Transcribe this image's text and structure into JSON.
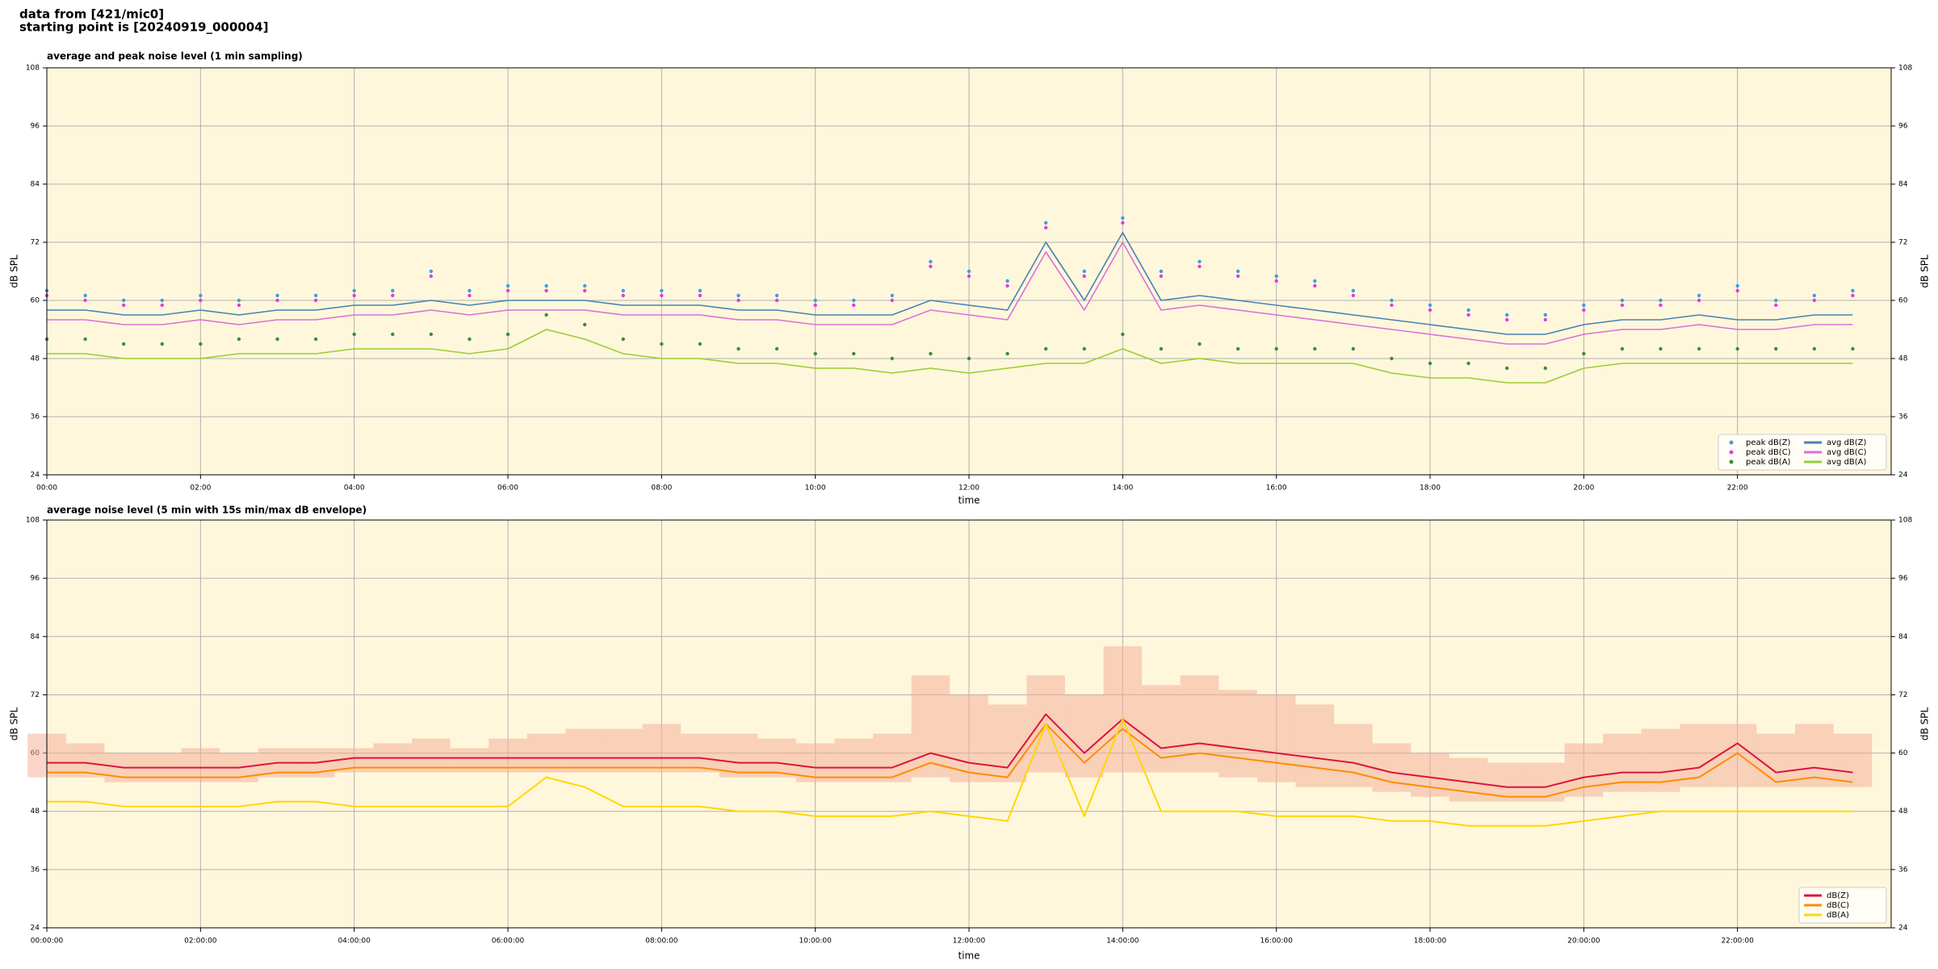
{
  "header": {
    "source": "data from [421/mic0]",
    "start": "starting point is [20240919_000004]"
  },
  "chart_data": [
    {
      "type": "line",
      "title": "average and peak noise level (1 min sampling)",
      "xlabel": "time",
      "ylabel": "dB SPL",
      "x": [
        0,
        0.5,
        1,
        1.5,
        2,
        2.5,
        3,
        3.5,
        4,
        4.5,
        5,
        5.5,
        6,
        6.5,
        7,
        7.5,
        8,
        8.5,
        9,
        9.5,
        10,
        10.5,
        11,
        11.5,
        12,
        12.5,
        13,
        13.5,
        14,
        14.5,
        15,
        15.5,
        16,
        16.5,
        17,
        17.5,
        18,
        18.5,
        19,
        19.5,
        20,
        20.5,
        21,
        21.5,
        22,
        22.5,
        23,
        23.5
      ],
      "xlim": [
        0,
        24
      ],
      "xticks": [
        {
          "value": 0,
          "label": "00:00"
        },
        {
          "value": 2,
          "label": "02:00"
        },
        {
          "value": 4,
          "label": "04:00"
        },
        {
          "value": 6,
          "label": "06:00"
        },
        {
          "value": 8,
          "label": "08:00"
        },
        {
          "value": 10,
          "label": "10:00"
        },
        {
          "value": 12,
          "label": "12:00"
        },
        {
          "value": 14,
          "label": "14:00"
        },
        {
          "value": 16,
          "label": "16:00"
        },
        {
          "value": 18,
          "label": "18:00"
        },
        {
          "value": 20,
          "label": "20:00"
        },
        {
          "value": 22,
          "label": "22:00"
        }
      ],
      "ylim": [
        24,
        108
      ],
      "yticks": [
        24,
        36,
        48,
        60,
        72,
        84,
        96,
        108
      ],
      "grid": true,
      "background": "#fff7dc",
      "legend": "lower right",
      "legend_columns": 2,
      "series": [
        {
          "name": "peak dB(Z)",
          "type": "scatter",
          "color": "#3a9ee0",
          "values": [
            62,
            61,
            60,
            60,
            61,
            60,
            61,
            61,
            62,
            62,
            66,
            62,
            63,
            63,
            63,
            62,
            62,
            62,
            61,
            61,
            60,
            60,
            61,
            68,
            66,
            64,
            76,
            66,
            77,
            66,
            68,
            66,
            65,
            64,
            62,
            60,
            59,
            58,
            57,
            57,
            59,
            60,
            60,
            61,
            63,
            60,
            61,
            62
          ]
        },
        {
          "name": "peak dB(C)",
          "type": "scatter",
          "color": "#e03ce0",
          "values": [
            61,
            60,
            59,
            59,
            60,
            59,
            60,
            60,
            61,
            61,
            65,
            61,
            62,
            62,
            62,
            61,
            61,
            61,
            60,
            60,
            59,
            59,
            60,
            67,
            65,
            63,
            75,
            65,
            76,
            65,
            67,
            65,
            64,
            63,
            61,
            59,
            58,
            57,
            56,
            56,
            58,
            59,
            59,
            60,
            62,
            59,
            60,
            61
          ]
        },
        {
          "name": "peak dB(A)",
          "type": "scatter",
          "color": "#3c8c3c",
          "values": [
            52,
            52,
            51,
            51,
            51,
            52,
            52,
            52,
            53,
            53,
            53,
            52,
            53,
            57,
            55,
            52,
            51,
            51,
            50,
            50,
            49,
            49,
            48,
            49,
            48,
            49,
            50,
            50,
            53,
            50,
            51,
            50,
            50,
            50,
            50,
            48,
            47,
            47,
            46,
            46,
            49,
            50,
            50,
            50,
            50,
            50,
            50,
            50
          ]
        },
        {
          "name": "avg dB(Z)",
          "type": "line",
          "color": "#4682b4",
          "values": [
            58,
            58,
            57,
            57,
            58,
            57,
            58,
            58,
            59,
            59,
            60,
            59,
            60,
            60,
            60,
            59,
            59,
            59,
            58,
            58,
            57,
            57,
            57,
            60,
            59,
            58,
            72,
            60,
            74,
            60,
            61,
            60,
            59,
            58,
            57,
            56,
            55,
            54,
            53,
            53,
            55,
            56,
            56,
            57,
            56,
            56,
            57,
            57
          ]
        },
        {
          "name": "avg dB(C)",
          "type": "line",
          "color": "#da70d6",
          "values": [
            56,
            56,
            55,
            55,
            56,
            55,
            56,
            56,
            57,
            57,
            58,
            57,
            58,
            58,
            58,
            57,
            57,
            57,
            56,
            56,
            55,
            55,
            55,
            58,
            57,
            56,
            70,
            58,
            72,
            58,
            59,
            58,
            57,
            56,
            55,
            54,
            53,
            52,
            51,
            51,
            53,
            54,
            54,
            55,
            54,
            54,
            55,
            55
          ]
        },
        {
          "name": "avg dB(A)",
          "type": "line",
          "color": "#9acd32",
          "values": [
            49,
            49,
            48,
            48,
            48,
            49,
            49,
            49,
            50,
            50,
            50,
            49,
            50,
            54,
            52,
            49,
            48,
            48,
            47,
            47,
            46,
            46,
            45,
            46,
            45,
            46,
            47,
            47,
            50,
            47,
            48,
            47,
            47,
            47,
            47,
            45,
            44,
            44,
            43,
            43,
            46,
            47,
            47,
            47,
            47,
            47,
            47,
            47
          ]
        }
      ]
    },
    {
      "type": "line",
      "title": "average noise level (5 min with 15s min/max dB envelope)",
      "xlabel": "time",
      "ylabel": "dB SPL",
      "x": [
        0,
        0.5,
        1,
        1.5,
        2,
        2.5,
        3,
        3.5,
        4,
        4.5,
        5,
        5.5,
        6,
        6.5,
        7,
        7.5,
        8,
        8.5,
        9,
        9.5,
        10,
        10.5,
        11,
        11.5,
        12,
        12.5,
        13,
        13.5,
        14,
        14.5,
        15,
        15.5,
        16,
        16.5,
        17,
        17.5,
        18,
        18.5,
        19,
        19.5,
        20,
        20.5,
        21,
        21.5,
        22,
        22.5,
        23,
        23.5
      ],
      "xlim": [
        0,
        24
      ],
      "xticks": [
        {
          "value": 0,
          "label": "00:00:00"
        },
        {
          "value": 2,
          "label": "02:00:00"
        },
        {
          "value": 4,
          "label": "04:00:00"
        },
        {
          "value": 6,
          "label": "06:00:00"
        },
        {
          "value": 8,
          "label": "08:00:00"
        },
        {
          "value": 10,
          "label": "10:00:00"
        },
        {
          "value": 12,
          "label": "12:00:00"
        },
        {
          "value": 14,
          "label": "14:00:00"
        },
        {
          "value": 16,
          "label": "16:00:00"
        },
        {
          "value": 18,
          "label": "18:00:00"
        },
        {
          "value": 20,
          "label": "20:00:00"
        },
        {
          "value": 22,
          "label": "22:00:00"
        }
      ],
      "ylim": [
        24,
        108
      ],
      "yticks": [
        24,
        36,
        48,
        60,
        72,
        84,
        96,
        108
      ],
      "grid": true,
      "background": "#fff7dc",
      "legend": "lower right",
      "legend_columns": 1,
      "envelope": {
        "color": "#f4b09a",
        "low": [
          55,
          55,
          54,
          54,
          54,
          54,
          55,
          55,
          56,
          56,
          56,
          56,
          56,
          56,
          56,
          56,
          56,
          56,
          55,
          55,
          54,
          54,
          54,
          55,
          54,
          54,
          56,
          55,
          56,
          56,
          56,
          55,
          54,
          53,
          53,
          52,
          51,
          50,
          50,
          50,
          51,
          52,
          52,
          53,
          53,
          53,
          53,
          53
        ],
        "high": [
          64,
          62,
          60,
          60,
          61,
          60,
          61,
          61,
          61,
          62,
          63,
          61,
          63,
          64,
          65,
          65,
          66,
          64,
          64,
          63,
          62,
          63,
          64,
          76,
          72,
          70,
          76,
          72,
          82,
          74,
          76,
          73,
          72,
          70,
          66,
          62,
          60,
          59,
          58,
          58,
          62,
          64,
          65,
          66,
          66,
          64,
          66,
          64
        ]
      },
      "series": [
        {
          "name": "dB(Z)",
          "type": "line",
          "color": "#dc143c",
          "values": [
            58,
            58,
            57,
            57,
            57,
            57,
            58,
            58,
            59,
            59,
            59,
            59,
            59,
            59,
            59,
            59,
            59,
            59,
            58,
            58,
            57,
            57,
            57,
            60,
            58,
            57,
            68,
            60,
            67,
            61,
            62,
            61,
            60,
            59,
            58,
            56,
            55,
            54,
            53,
            53,
            55,
            56,
            56,
            57,
            62,
            56,
            57,
            56
          ]
        },
        {
          "name": "dB(C)",
          "type": "line",
          "color": "#ff8c00",
          "values": [
            56,
            56,
            55,
            55,
            55,
            55,
            56,
            56,
            57,
            57,
            57,
            57,
            57,
            57,
            57,
            57,
            57,
            57,
            56,
            56,
            55,
            55,
            55,
            58,
            56,
            55,
            66,
            58,
            65,
            59,
            60,
            59,
            58,
            57,
            56,
            54,
            53,
            52,
            51,
            51,
            53,
            54,
            54,
            55,
            60,
            54,
            55,
            54
          ]
        },
        {
          "name": "dB(A)",
          "type": "line",
          "color": "#ffd700",
          "values": [
            50,
            50,
            49,
            49,
            49,
            49,
            50,
            50,
            49,
            49,
            49,
            49,
            49,
            55,
            53,
            49,
            49,
            49,
            48,
            48,
            47,
            47,
            47,
            48,
            47,
            46,
            66,
            47,
            67,
            48,
            48,
            48,
            47,
            47,
            47,
            46,
            46,
            45,
            45,
            45,
            46,
            47,
            48,
            48,
            48,
            48,
            48,
            48
          ]
        }
      ]
    }
  ]
}
